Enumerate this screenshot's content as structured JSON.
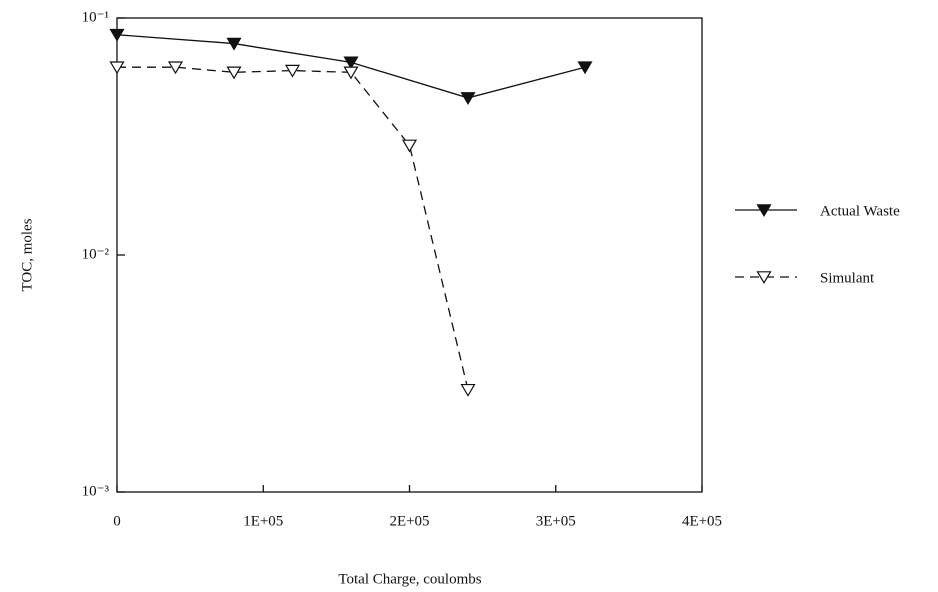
{
  "chart_data": {
    "type": "line",
    "xlabel": "Total Charge, coulombs",
    "ylabel": "TOC, moles",
    "ylog": true,
    "xlim": [
      0,
      400000
    ],
    "ylim": [
      0.001,
      0.1
    ],
    "xticks": [
      0,
      {
        "value": 100000,
        "label": "1E+05"
      },
      {
        "value": 200000,
        "label": "2E+05"
      },
      {
        "value": 300000,
        "label": "3E+05"
      },
      {
        "value": 400000,
        "label": "4E+05"
      }
    ],
    "yticks": [
      {
        "value": 0.001,
        "label": "10⁻³"
      },
      {
        "value": 0.01,
        "label": "10⁻²"
      },
      {
        "value": 0.1,
        "label": "10⁻¹"
      }
    ],
    "legend": "right",
    "series": [
      {
        "name": "Actual Waste",
        "color": "#111111",
        "dashed": false,
        "filled": true,
        "x": [
          0,
          80000,
          160000,
          240000,
          320000
        ],
        "values": [
          0.085,
          0.078,
          0.065,
          0.046,
          0.062
        ]
      },
      {
        "name": "Simulant",
        "color": "#111111",
        "dashed": true,
        "filled": false,
        "x": [
          0,
          40000,
          80000,
          120000,
          160000,
          200000,
          240000
        ],
        "values": [
          0.062,
          0.062,
          0.059,
          0.06,
          0.059,
          0.029,
          0.0027
        ]
      }
    ]
  }
}
